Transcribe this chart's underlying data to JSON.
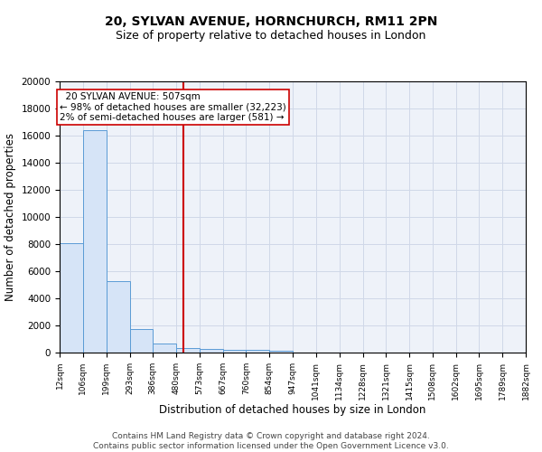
{
  "title1": "20, SYLVAN AVENUE, HORNCHURCH, RM11 2PN",
  "title2": "Size of property relative to detached houses in London",
  "xlabel": "Distribution of detached houses by size in London",
  "ylabel": "Number of detached properties",
  "footer": "Contains HM Land Registry data © Crown copyright and database right 2024.\nContains public sector information licensed under the Open Government Licence v3.0.",
  "bin_edges": [
    12,
    106,
    199,
    293,
    386,
    480,
    573,
    667,
    760,
    854,
    947,
    1041,
    1134,
    1228,
    1321,
    1415,
    1508,
    1602,
    1695,
    1789,
    1882
  ],
  "bin_heights": [
    8100,
    16400,
    5300,
    1750,
    700,
    310,
    270,
    200,
    170,
    150,
    0,
    0,
    0,
    0,
    0,
    0,
    0,
    0,
    0,
    0
  ],
  "bar_facecolor": "#d6e4f7",
  "bar_edgecolor": "#5b9bd5",
  "vline_x": 507,
  "vline_color": "#cc0000",
  "vline_lw": 1.5,
  "annotation_text": "  20 SYLVAN AVENUE: 507sqm\n← 98% of detached houses are smaller (32,223)\n2% of semi-detached houses are larger (581) →",
  "annotation_box_color": "#ffffff",
  "annotation_edge_color": "#cc0000",
  "annotation_fontsize": 7.5,
  "grid_color": "#d0d8e8",
  "background_color": "#eef2f9",
  "ylim": [
    0,
    20000
  ],
  "yticks": [
    0,
    2000,
    4000,
    6000,
    8000,
    10000,
    12000,
    14000,
    16000,
    18000,
    20000
  ],
  "tick_labels": [
    "12sqm",
    "106sqm",
    "199sqm",
    "293sqm",
    "386sqm",
    "480sqm",
    "573sqm",
    "667sqm",
    "760sqm",
    "854sqm",
    "947sqm",
    "1041sqm",
    "1134sqm",
    "1228sqm",
    "1321sqm",
    "1415sqm",
    "1508sqm",
    "1602sqm",
    "1695sqm",
    "1789sqm",
    "1882sqm"
  ],
  "title1_fontsize": 10,
  "title2_fontsize": 9,
  "xlabel_fontsize": 8.5,
  "ylabel_fontsize": 8.5,
  "footer_fontsize": 6.5
}
